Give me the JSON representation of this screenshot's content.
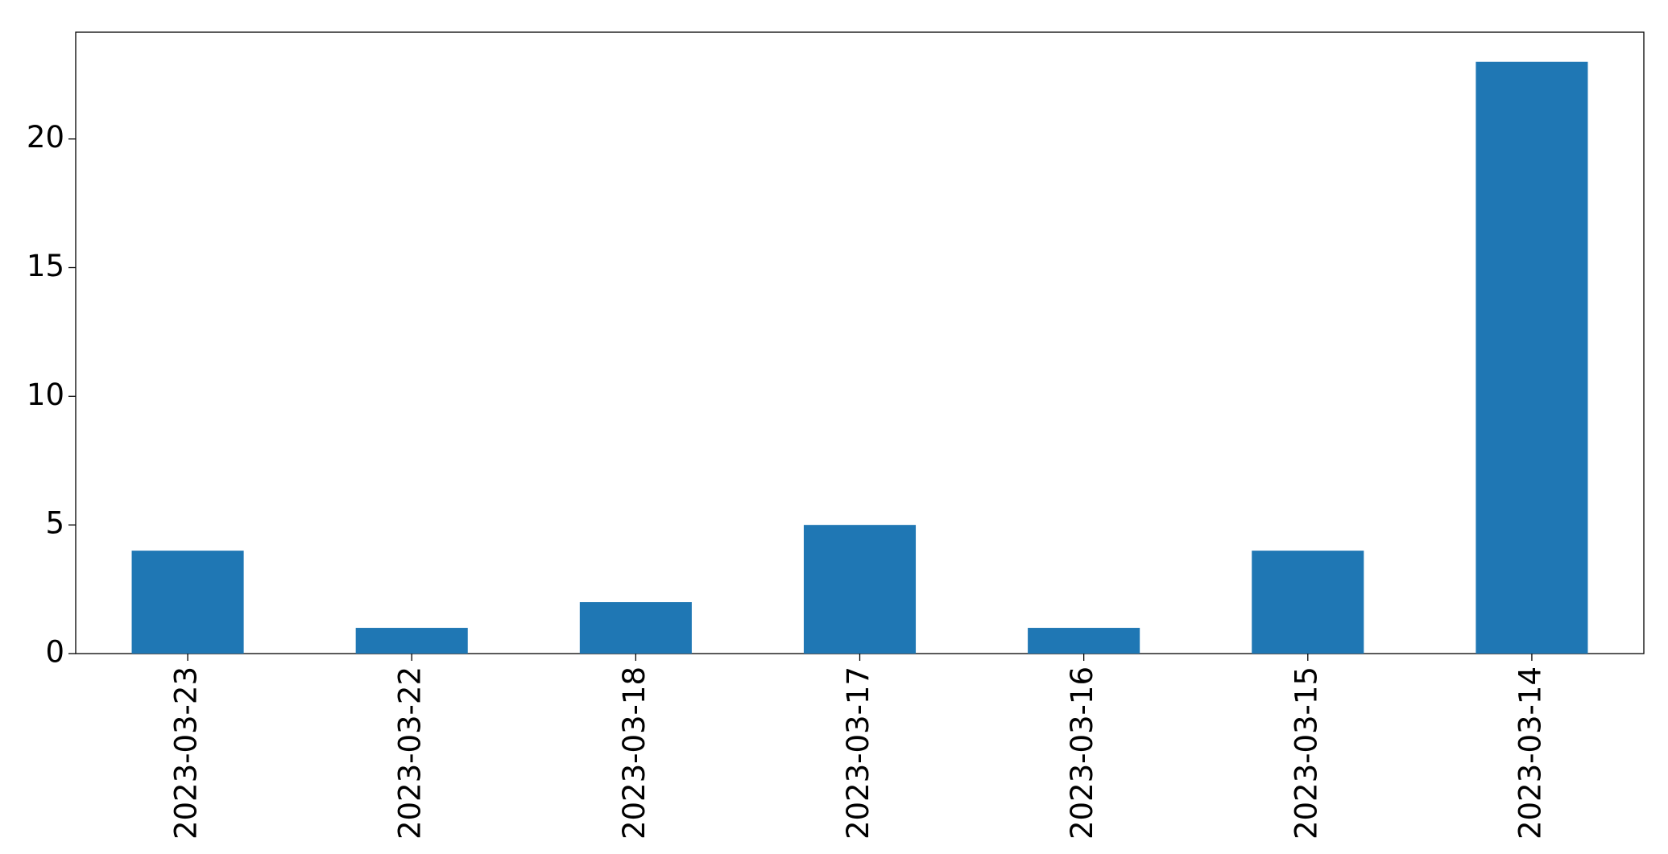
{
  "chart_data": {
    "type": "bar",
    "categories": [
      "2023-03-23",
      "2023-03-22",
      "2023-03-18",
      "2023-03-17",
      "2023-03-16",
      "2023-03-15",
      "2023-03-14"
    ],
    "values": [
      4,
      1,
      2,
      5,
      1,
      4,
      23
    ],
    "color": "#1f77b4",
    "ylim": [
      0,
      24.15
    ],
    "yticks": [
      0,
      5,
      10,
      15,
      20
    ],
    "grid": false
  }
}
